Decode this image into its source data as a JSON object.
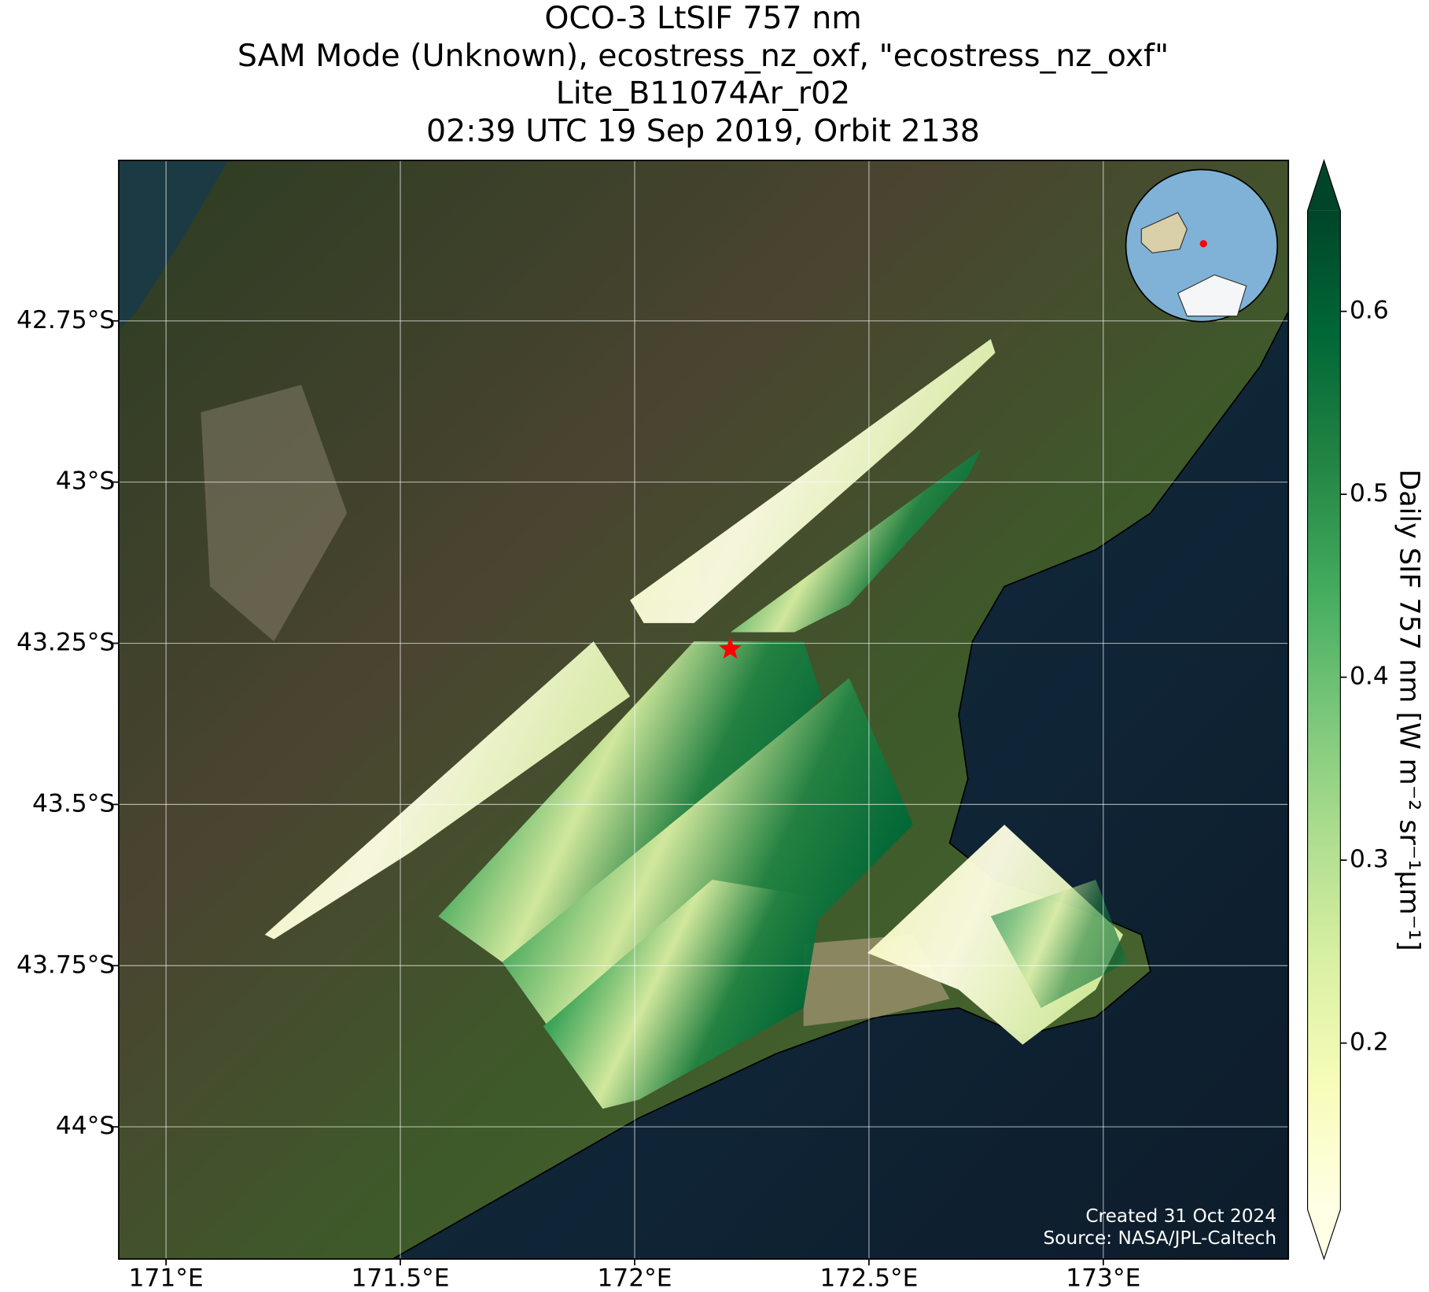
{
  "chart_data": {
    "type": "map",
    "title": [
      "OCO-3 LtSIF 757 nm",
      "SAM Mode (Unknown), ecostress_nz_oxf, \"ecostress_nz_oxf\"",
      "Lite_B11074Ar_r02",
      "02:39 UTC 19 Sep 2019, Orbit 2138"
    ],
    "xlim": [
      170.899,
      173.395
    ],
    "xticks": [
      {
        "value": 171,
        "label": "171°E"
      },
      {
        "value": 171.5,
        "label": "171.5°E"
      },
      {
        "value": 172,
        "label": "172°E"
      },
      {
        "value": 172.5,
        "label": "172.5°E"
      },
      {
        "value": 173,
        "label": "173°E"
      }
    ],
    "ylim": [
      -44.205,
      -42.501
    ],
    "yticks": [
      {
        "value": -42.75,
        "label": "42.75°S"
      },
      {
        "value": -43,
        "label": "43°S"
      },
      {
        "value": -43.25,
        "label": "43.25°S"
      },
      {
        "value": -43.5,
        "label": "43.5°S"
      },
      {
        "value": -43.75,
        "label": "43.75°S"
      },
      {
        "value": -44,
        "label": "44°S"
      }
    ],
    "grid": true,
    "marker": {
      "lon": 172.204,
      "lat": -43.259,
      "color": "#ff0000"
    },
    "colorbar": {
      "label": "Daily SIF 757 nm [W m⁻² sr⁻¹μm⁻¹]",
      "lim": [
        0.109,
        0.655
      ],
      "ticks": [
        0.2,
        0.3,
        0.4,
        0.5,
        0.6
      ],
      "colors": [
        "#ffffe5",
        "#f7fcb9",
        "#d9f0a3",
        "#addd8e",
        "#78c679",
        "#41ab5d",
        "#238443",
        "#006837",
        "#004529"
      ]
    },
    "annotations": [
      "Created 31 Oct 2024",
      "Source: NASA/JPL-Caltech"
    ]
  }
}
